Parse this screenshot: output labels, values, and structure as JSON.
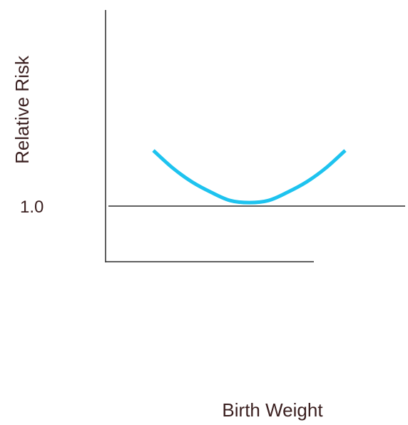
{
  "colors": {
    "axis": "#2b2b2b",
    "curve": "#1ec3ef",
    "text": "#3a1f1f"
  },
  "chart_data": {
    "type": "line",
    "title": "",
    "xlabel": "Birth Weight",
    "ylabel": "Relative Risk",
    "y_ticks": [
      "1.0"
    ],
    "reference_line": {
      "y": 1.0,
      "label": "1.0"
    },
    "x_tick_labels_shown": false,
    "grid": false,
    "series": [
      {
        "values_description": "U-shaped curve; risk above 1.0 at low and high birth weight, minimum near 1.0 at middle weight",
        "x": [
          0,
          0.1,
          0.2,
          0.3,
          0.4,
          0.5,
          0.6,
          0.7,
          0.8,
          0.9,
          1.0
        ],
        "y": [
          1.8,
          1.55,
          1.35,
          1.2,
          1.08,
          1.05,
          1.08,
          1.2,
          1.35,
          1.55,
          1.8
        ]
      }
    ]
  }
}
